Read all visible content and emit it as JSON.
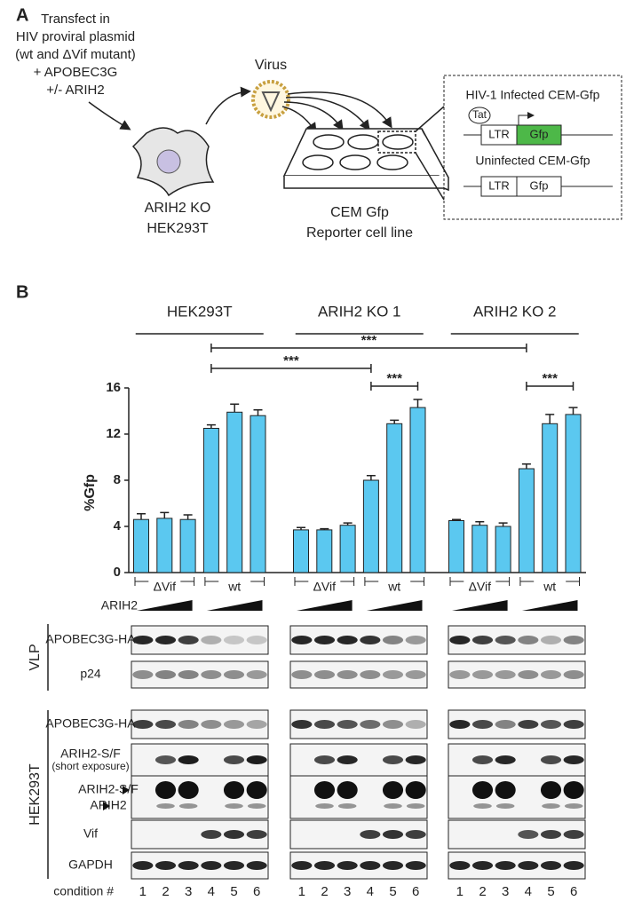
{
  "panel_a": {
    "label": "A",
    "transfection": [
      "Transfect in",
      "HIV proviral plasmid",
      "(wt and ΔVif mutant)",
      "+ APOBEC3G",
      "+/- ARIH2"
    ],
    "virus": "Virus",
    "producer": [
      "ARIH2 KO",
      "HEK293T"
    ],
    "reporter": [
      "CEM Gfp",
      "Reporter cell line"
    ],
    "inset": {
      "infected": "HIV-1 Infected CEM-Gfp",
      "tat": "Tat",
      "ltr_1": "LTR",
      "gfp_1": "Gfp",
      "uninfected": "Uninfected CEM-Gfp",
      "ltr_2": "LTR",
      "gfp_2": "Gfp"
    }
  },
  "panel_b_label": "B",
  "chart_data": {
    "type": "bar",
    "ylabel": "%Gfp",
    "ylim": [
      0,
      16
    ],
    "yticks": [
      0,
      4,
      8,
      12,
      16
    ],
    "groups": [
      "HEK293T",
      "ARIH2 KO 1",
      "ARIH2 KO 2"
    ],
    "subgroups": [
      "ΔVif",
      "wt",
      "ΔVif",
      "wt",
      "ΔVif",
      "wt"
    ],
    "significance": [
      "***",
      "***",
      "***",
      "***"
    ],
    "dose_label": "ARIH2",
    "series": [
      {
        "color": "#5bc8f0",
        "values": [
          4.6,
          4.7,
          4.6,
          12.5,
          13.9,
          13.6,
          3.7,
          3.7,
          4.1,
          8.0,
          12.9,
          14.3,
          4.5,
          4.1,
          4.0,
          9.0,
          12.9,
          13.7
        ],
        "errors": [
          0.5,
          0.5,
          0.4,
          0.3,
          0.7,
          0.5,
          0.2,
          0.1,
          0.2,
          0.4,
          0.3,
          0.7,
          0.1,
          0.3,
          0.3,
          0.4,
          0.8,
          0.6
        ]
      }
    ]
  },
  "blots": {
    "sections": [
      "VLP",
      "HEK293T"
    ],
    "rows": [
      [
        "APOBEC3G-HA"
      ],
      [
        "p24"
      ],
      [
        "APOBEC3G-HA"
      ],
      [
        "ARIH2-S/F",
        "(short exposure)"
      ],
      [
        "ARIH2-S/F",
        "ARIH2"
      ],
      [
        "Vif"
      ],
      [
        "GAPDH"
      ]
    ],
    "condition_label": "condition #",
    "lanes": [
      [
        "1",
        "2",
        "3",
        "4",
        "5",
        "6"
      ],
      [
        "1",
        "2",
        "3",
        "4",
        "5",
        "6"
      ],
      [
        "1",
        "2",
        "3",
        "4",
        "5",
        "6"
      ]
    ]
  }
}
